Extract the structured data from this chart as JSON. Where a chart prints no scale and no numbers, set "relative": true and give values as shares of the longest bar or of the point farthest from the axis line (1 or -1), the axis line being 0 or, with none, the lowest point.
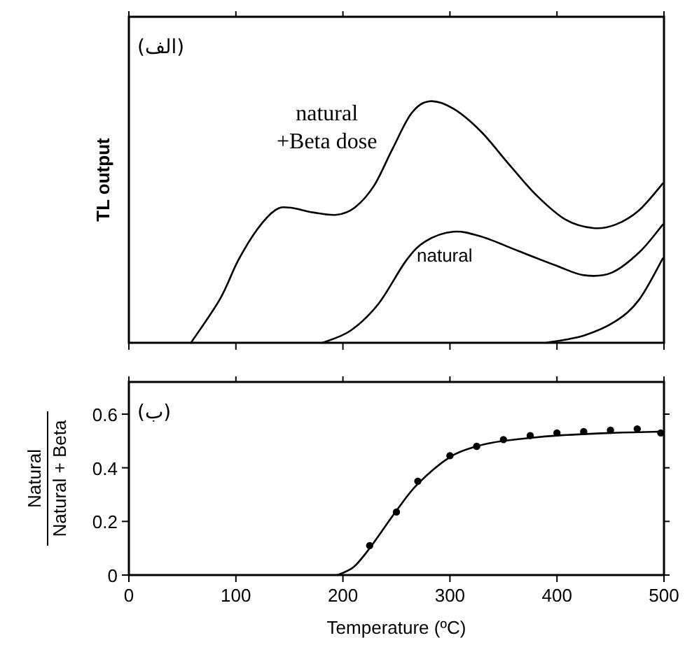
{
  "chart_data": [
    {
      "type": "line",
      "relative": true,
      "ylabel": "TL output",
      "xlim": [
        0,
        500
      ],
      "tick_labels": false,
      "xticks": [
        0,
        100,
        200,
        300,
        400,
        500
      ],
      "annotations": [
        "(الف)"
      ],
      "series": [
        {
          "name": "natural\n+Beta dose",
          "color": "#000000",
          "x": [
            58,
            85,
            102,
            120,
            137,
            150,
            172,
            194,
            211,
            229,
            246,
            264,
            281,
            303,
            329,
            355,
            381,
            408,
            434,
            455,
            477,
            499
          ],
          "values": [
            0,
            0.18,
            0.34,
            0.47,
            0.55,
            0.56,
            0.54,
            0.53,
            0.56,
            0.65,
            0.8,
            0.95,
            1,
            0.97,
            0.875,
            0.74,
            0.61,
            0.51,
            0.475,
            0.49,
            0.55,
            0.66
          ]
        },
        {
          "name": "natural",
          "color": "#000000",
          "x": [
            181,
            207,
            233,
            259,
            277,
            303,
            329,
            364,
            399,
            425,
            451,
            477,
            499
          ],
          "values": [
            0,
            0.05,
            0.16,
            0.34,
            0.42,
            0.46,
            0.44,
            0.38,
            0.32,
            0.28,
            0.29,
            0.375,
            0.49
          ]
        },
        {
          "color": "#000000",
          "x": [
            390,
            425,
            455,
            477,
            499
          ],
          "values": [
            0,
            0.03,
            0.09,
            0.18,
            0.35
          ]
        }
      ]
    },
    {
      "type": "scatter",
      "xlabel": "Temperature (ºC)",
      "ylabel": "Natural\nNatural + Beta",
      "xlim": [
        0,
        500
      ],
      "ylim": [
        0,
        0.72
      ],
      "xticks": [
        0,
        100,
        200,
        300,
        400,
        500
      ],
      "yticks": [
        0,
        0.2,
        0.4,
        0.6
      ],
      "annotations": [
        "(ب)"
      ],
      "series": [
        {
          "marker": "circle",
          "color": "#000000",
          "x": [
            225,
            250,
            270,
            300,
            325,
            350,
            375,
            400,
            425,
            450,
            475,
            497
          ],
          "values": [
            0.11,
            0.235,
            0.35,
            0.445,
            0.48,
            0.505,
            0.52,
            0.53,
            0.535,
            0.54,
            0.545,
            0.53
          ]
        },
        {
          "type": "line",
          "color": "#000000",
          "x": [
            195,
            210,
            225,
            250,
            270,
            300,
            325,
            350,
            400,
            450,
            500
          ],
          "values": [
            0,
            0.03,
            0.1,
            0.24,
            0.34,
            0.44,
            0.48,
            0.5,
            0.52,
            0.53,
            0.535
          ]
        }
      ]
    }
  ]
}
